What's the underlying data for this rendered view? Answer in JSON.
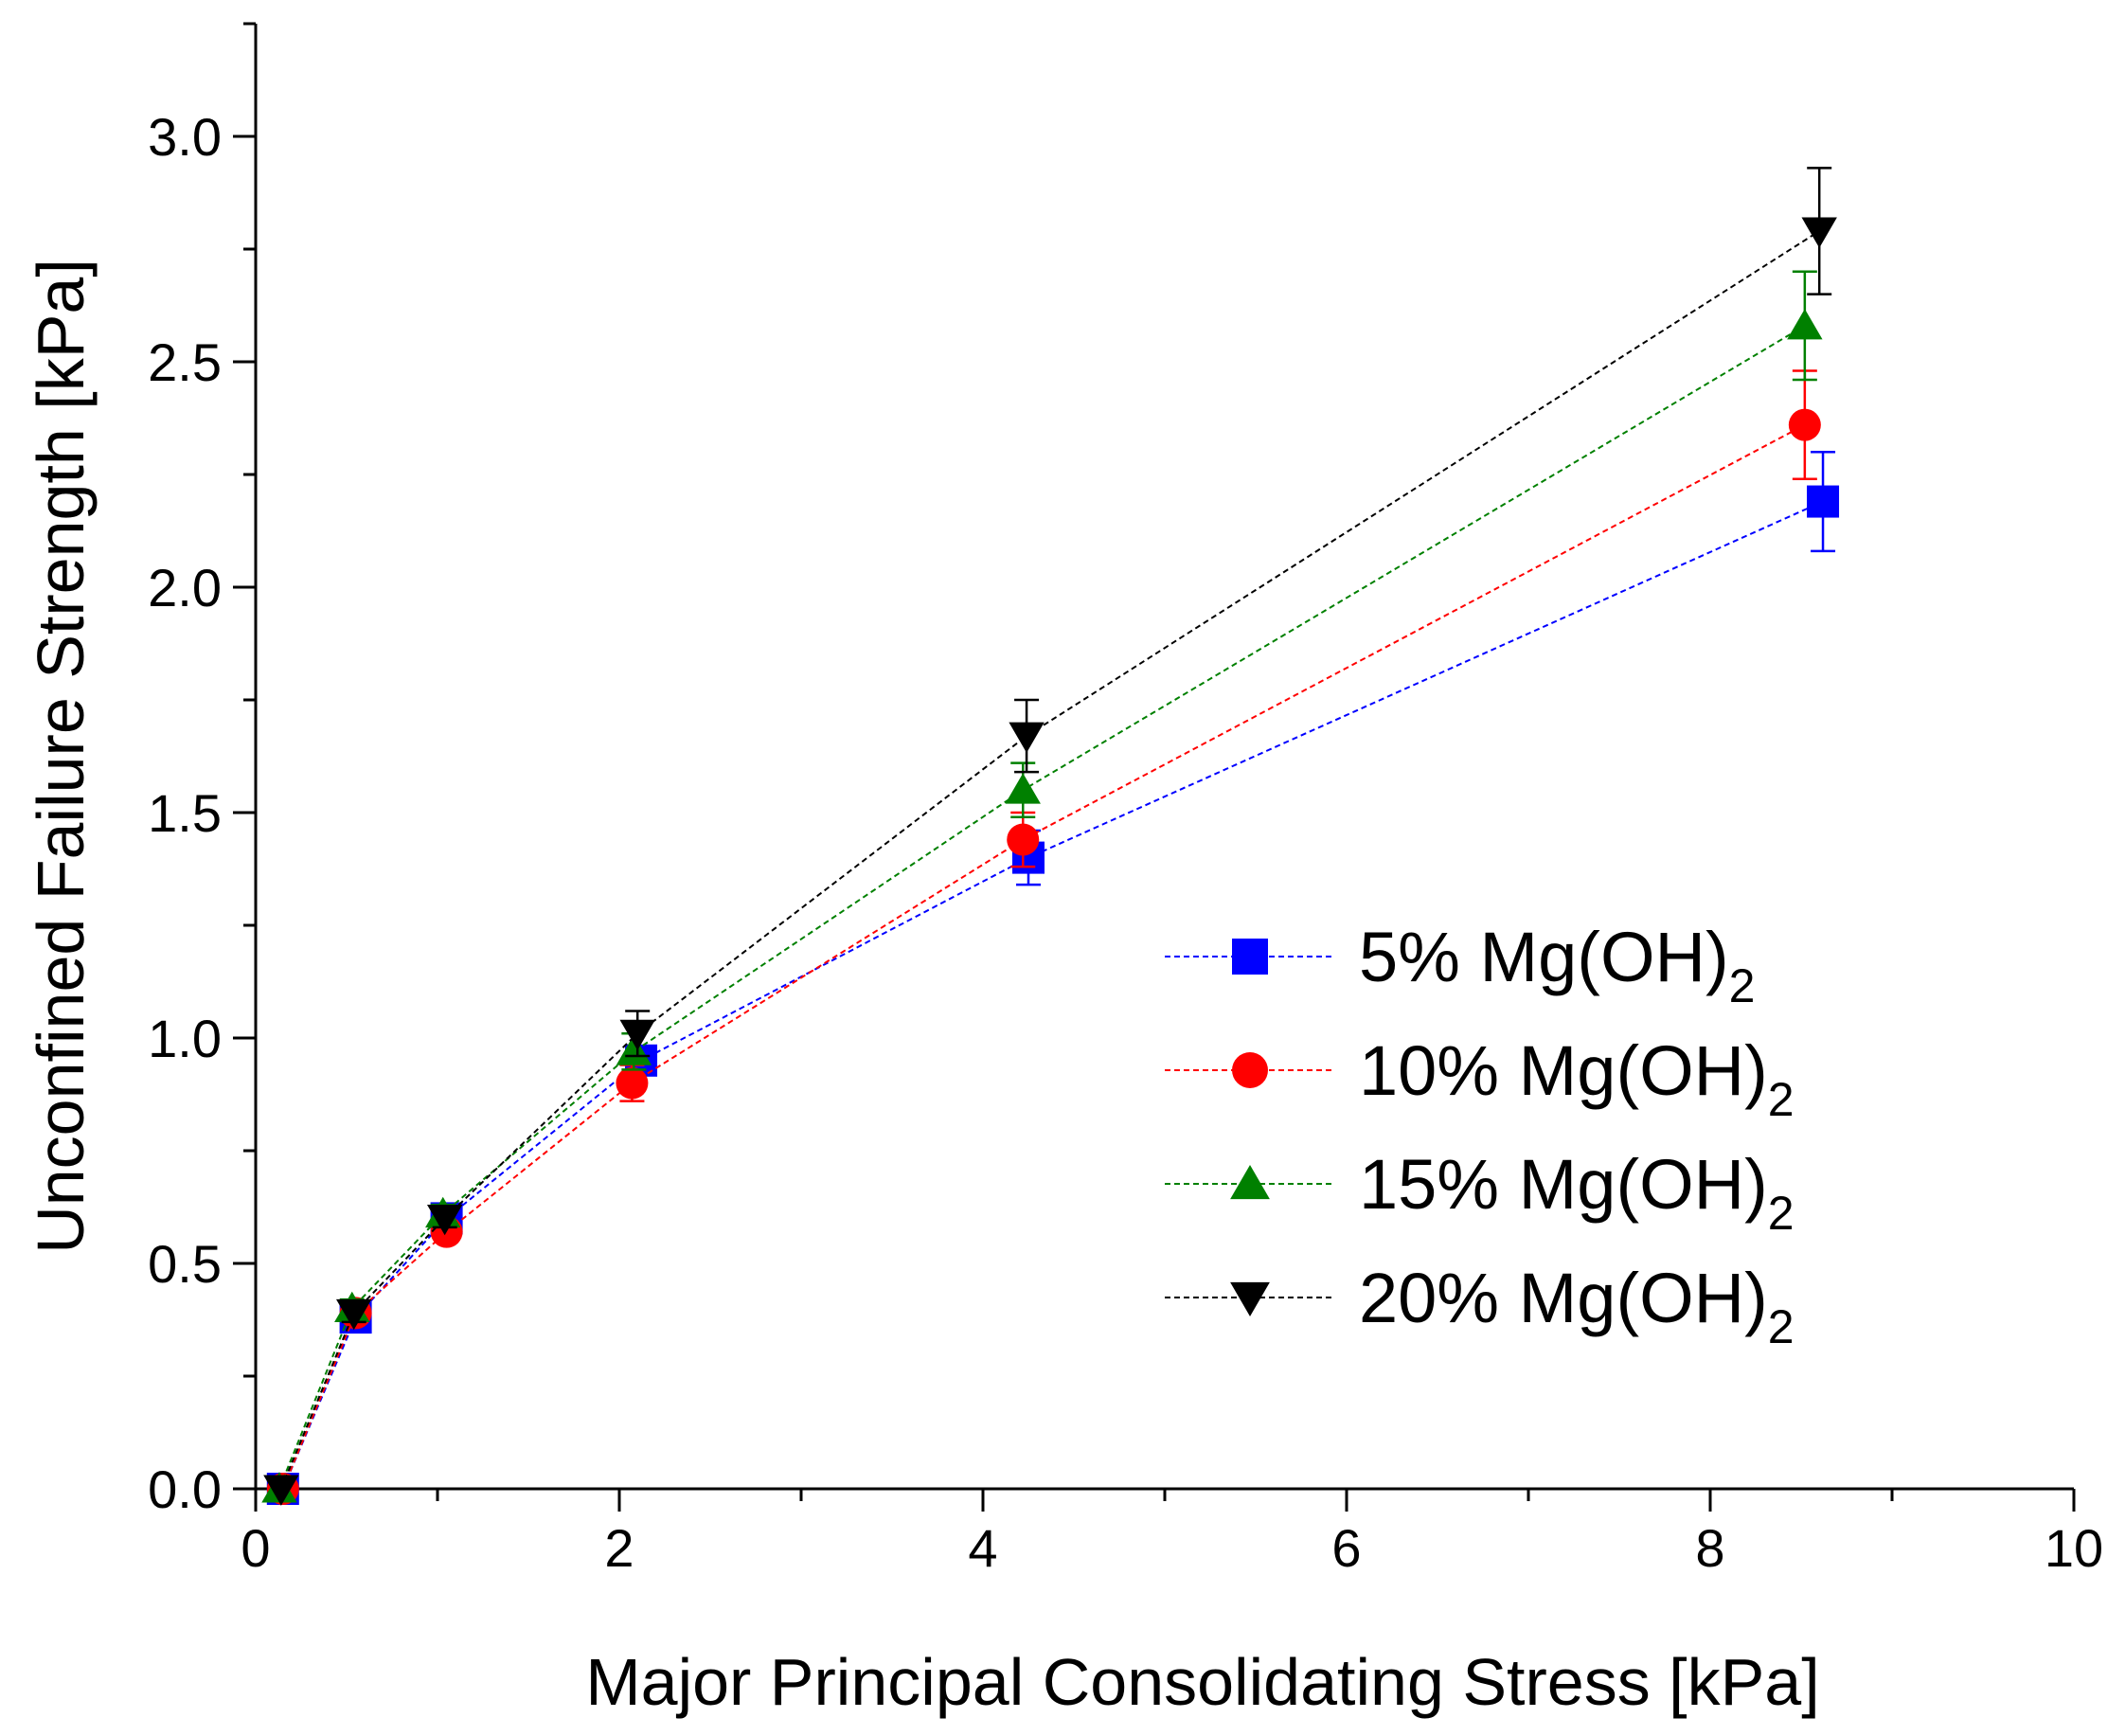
{
  "chart_data": {
    "type": "line",
    "xlabel": "Major Principal Consolidating Stress [kPa]",
    "ylabel": "Unconfined Failure Strength [kPa]",
    "xlim": [
      0,
      10
    ],
    "ylim": [
      0,
      3.25
    ],
    "x_ticks": [
      0,
      2,
      4,
      6,
      8,
      10
    ],
    "x_tick_labels": [
      "0",
      "2",
      "4",
      "6",
      "8",
      "10"
    ],
    "y_ticks": [
      0.0,
      0.5,
      1.0,
      1.5,
      2.0,
      2.5,
      3.0
    ],
    "y_tick_labels": [
      "0.0",
      "0.5",
      "1.0",
      "1.5",
      "2.0",
      "2.5",
      "3.0"
    ],
    "grid": false,
    "legend_position": "center-right",
    "series": [
      {
        "name": "5% Mg(OH)",
        "subscript": "2",
        "color": "#0000ff",
        "marker": "square",
        "x": [
          0.15,
          0.55,
          1.05,
          2.12,
          4.25,
          8.62
        ],
        "y": [
          0.0,
          0.38,
          0.6,
          0.95,
          1.4,
          2.19
        ],
        "err": [
          0.0,
          0.02,
          0.02,
          0.03,
          0.06,
          0.11
        ]
      },
      {
        "name": "10% Mg(OH)",
        "subscript": "2",
        "color": "#ff0000",
        "marker": "circle",
        "x": [
          0.15,
          0.55,
          1.05,
          2.07,
          4.22,
          8.52
        ],
        "y": [
          0.0,
          0.39,
          0.57,
          0.9,
          1.44,
          2.36
        ],
        "err": [
          0.0,
          0.02,
          0.02,
          0.04,
          0.06,
          0.12
        ]
      },
      {
        "name": "15% Mg(OH)",
        "subscript": "2",
        "color": "#008000",
        "marker": "triangle-up",
        "x": [
          0.13,
          0.53,
          1.03,
          2.08,
          4.22,
          8.52
        ],
        "y": [
          0.0,
          0.4,
          0.61,
          0.97,
          1.55,
          2.58
        ],
        "err": [
          0.0,
          0.02,
          0.02,
          0.04,
          0.06,
          0.12
        ]
      },
      {
        "name": "20% Mg(OH)",
        "subscript": "2",
        "color": "#000000",
        "marker": "triangle-down",
        "x": [
          0.14,
          0.54,
          1.04,
          2.1,
          4.24,
          8.6
        ],
        "y": [
          0.0,
          0.39,
          0.6,
          1.01,
          1.67,
          2.79
        ],
        "err": [
          0.0,
          0.02,
          0.02,
          0.05,
          0.08,
          0.14
        ]
      }
    ]
  }
}
